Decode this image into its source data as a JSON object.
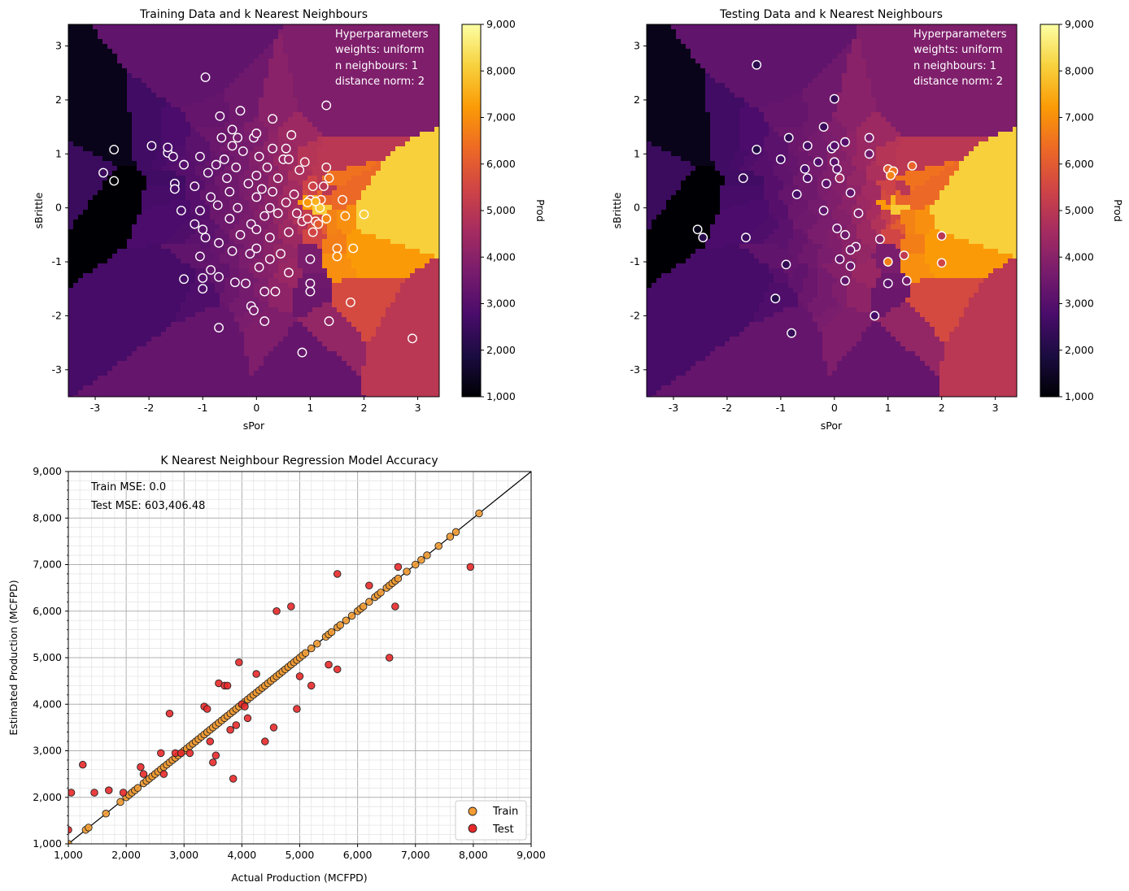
{
  "colors": {
    "train_marker": "#f39c33",
    "test_marker": "#e8292a",
    "inferno": [
      "#000004",
      "#1b0c41",
      "#4a0c6b",
      "#781c6d",
      "#a52c60",
      "#cf4446",
      "#ed6925",
      "#fb9b06",
      "#f7d13d",
      "#fcffa4"
    ]
  },
  "chart_data": [
    {
      "type": "heatmap",
      "title": "Training Data and k Nearest Neighbours",
      "xlabel": "sPor",
      "ylabel": "sBrittle",
      "xlim": [
        -3.5,
        3.4
      ],
      "ylim": [
        -3.5,
        3.4
      ],
      "xticks": [
        "-3",
        "-2",
        "-1",
        "0",
        "1",
        "2",
        "3"
      ],
      "yticks": [
        "-3",
        "-2",
        "-1",
        "0",
        "1",
        "2",
        "3"
      ],
      "hyperparameters": [
        "Hyperparameters",
        "weights: uniform",
        "n neighbours: 1",
        "distance norm: 2"
      ],
      "colorbar": {
        "label": "Prod",
        "range": [
          1000,
          9000
        ],
        "ticks": [
          "1,000",
          "2,000",
          "3,000",
          "4,000",
          "5,000",
          "6,000",
          "7,000",
          "8,000",
          "9,000"
        ]
      },
      "points": [
        [
          -0.95,
          2.42,
          3200
        ],
        [
          -2.65,
          1.08,
          1300
        ],
        [
          -2.85,
          0.65,
          2500
        ],
        [
          -2.65,
          0.5,
          1000
        ],
        [
          -1.95,
          1.15,
          2600
        ],
        [
          -1.65,
          1.02,
          2700
        ],
        [
          -1.65,
          1.12,
          2800
        ],
        [
          -1.55,
          0.95,
          2900
        ],
        [
          -1.52,
          0.45,
          2600
        ],
        [
          -1.52,
          0.35,
          2700
        ],
        [
          -1.35,
          0.8,
          3000
        ],
        [
          -1.4,
          -0.05,
          2800
        ],
        [
          -1.35,
          -1.32,
          2700
        ],
        [
          -1.15,
          0.4,
          3000
        ],
        [
          -1.15,
          -0.3,
          2900
        ],
        [
          -1.05,
          0.95,
          3100
        ],
        [
          -1.05,
          -0.05,
          3000
        ],
        [
          -1.0,
          -0.4,
          3100
        ],
        [
          -1.05,
          -0.9,
          3200
        ],
        [
          -1.0,
          -1.3,
          3000
        ],
        [
          -1.0,
          -1.5,
          2900
        ],
        [
          -0.95,
          -0.55,
          3100
        ],
        [
          -0.9,
          0.65,
          3200
        ],
        [
          -0.85,
          -1.15,
          3300
        ],
        [
          -0.85,
          0.2,
          3300
        ],
        [
          -0.75,
          0.8,
          3300
        ],
        [
          -0.72,
          0.05,
          3400
        ],
        [
          -0.7,
          -0.65,
          3300
        ],
        [
          -0.7,
          -1.28,
          3200
        ],
        [
          -0.7,
          -2.22,
          3300
        ],
        [
          -0.68,
          1.7,
          3300
        ],
        [
          -0.65,
          1.3,
          3400
        ],
        [
          -0.6,
          0.9,
          3400
        ],
        [
          -0.55,
          0.55,
          3500
        ],
        [
          -0.5,
          0.3,
          3500
        ],
        [
          -0.5,
          -0.2,
          3500
        ],
        [
          -0.45,
          -0.8,
          3500
        ],
        [
          -0.45,
          1.15,
          3600
        ],
        [
          -0.45,
          1.45,
          3500
        ],
        [
          -0.4,
          -1.38,
          3400
        ],
        [
          -0.38,
          0.75,
          3600
        ],
        [
          -0.35,
          0.0,
          3600
        ],
        [
          -0.35,
          1.3,
          3600
        ],
        [
          -0.3,
          -0.5,
          3700
        ],
        [
          -0.3,
          1.8,
          3500
        ],
        [
          -0.25,
          1.05,
          3600
        ],
        [
          -0.2,
          -1.4,
          3600
        ],
        [
          -0.15,
          0.45,
          3700
        ],
        [
          -0.12,
          -0.85,
          3700
        ],
        [
          -0.1,
          -1.82,
          3600
        ],
        [
          -0.1,
          -0.3,
          3700
        ],
        [
          -0.05,
          1.3,
          3700
        ],
        [
          -0.05,
          -1.9,
          3700
        ],
        [
          0.0,
          0.6,
          3800
        ],
        [
          0.0,
          0.2,
          3800
        ],
        [
          0.0,
          -0.4,
          3800
        ],
        [
          0.0,
          -0.75,
          3800
        ],
        [
          0.0,
          1.38,
          3800
        ],
        [
          0.05,
          0.95,
          3900
        ],
        [
          0.05,
          -1.1,
          3900
        ],
        [
          0.1,
          0.35,
          3900
        ],
        [
          0.15,
          -0.15,
          3900
        ],
        [
          0.15,
          -1.55,
          3800
        ],
        [
          0.15,
          -2.1,
          3800
        ],
        [
          0.2,
          0.75,
          4000
        ],
        [
          0.25,
          0.0,
          4000
        ],
        [
          0.25,
          -0.55,
          4000
        ],
        [
          0.25,
          -0.95,
          4000
        ],
        [
          0.3,
          1.65,
          4000
        ],
        [
          0.3,
          1.1,
          4100
        ],
        [
          0.3,
          0.3,
          4100
        ],
        [
          0.35,
          -1.55,
          4100
        ],
        [
          0.4,
          -0.1,
          4200
        ],
        [
          0.4,
          0.55,
          4200
        ],
        [
          0.45,
          -0.85,
          4200
        ],
        [
          0.5,
          0.9,
          4300
        ],
        [
          0.55,
          1.1,
          4300
        ],
        [
          0.55,
          0.1,
          4400
        ],
        [
          0.6,
          0.9,
          4400
        ],
        [
          0.6,
          -0.45,
          4400
        ],
        [
          0.6,
          -1.2,
          4300
        ],
        [
          0.65,
          1.35,
          4400
        ],
        [
          0.7,
          0.25,
          4500
        ],
        [
          0.75,
          -0.1,
          4600
        ],
        [
          0.8,
          0.7,
          4700
        ],
        [
          0.85,
          -0.25,
          4800
        ],
        [
          0.85,
          -2.68,
          3300
        ],
        [
          0.9,
          0.85,
          4900
        ],
        [
          0.95,
          -0.2,
          5200
        ],
        [
          1.0,
          0.15,
          5600
        ],
        [
          1.0,
          -0.95,
          3700
        ],
        [
          1.0,
          -1.4,
          3500
        ],
        [
          1.0,
          -1.55,
          3400
        ],
        [
          1.05,
          0.4,
          5400
        ],
        [
          1.05,
          -0.45,
          5500
        ],
        [
          1.1,
          -0.25,
          5600
        ],
        [
          1.15,
          -0.3,
          6000
        ],
        [
          1.2,
          0.15,
          6200
        ],
        [
          1.25,
          0.4,
          5000
        ],
        [
          1.3,
          1.9,
          3800
        ],
        [
          1.3,
          0.75,
          5000
        ],
        [
          1.3,
          -0.2,
          6800
        ],
        [
          1.35,
          -2.1,
          4200
        ],
        [
          1.35,
          0.55,
          6500
        ],
        [
          1.5,
          -0.75,
          6700
        ],
        [
          1.5,
          -0.9,
          7000
        ],
        [
          1.6,
          0.15,
          6300
        ],
        [
          1.65,
          -0.15,
          7000
        ],
        [
          1.75,
          -1.75,
          5600
        ],
        [
          1.8,
          -0.75,
          7200
        ],
        [
          2.0,
          -0.12,
          8100
        ],
        [
          2.9,
          -2.42,
          5000
        ],
        [
          1.18,
          0.0,
          8000
        ],
        [
          1.1,
          0.12,
          7600
        ],
        [
          0.95,
          0.1,
          7200
        ]
      ]
    },
    {
      "type": "heatmap",
      "title": "Testing Data and k Nearest Neighbours",
      "xlabel": "sPor",
      "ylabel": "sBrittle",
      "xlim": [
        -3.5,
        3.4
      ],
      "ylim": [
        -3.5,
        3.4
      ],
      "xticks": [
        "-3",
        "-2",
        "-1",
        "0",
        "1",
        "2",
        "3"
      ],
      "yticks": [
        "-3",
        "-2",
        "-1",
        "0",
        "1",
        "2",
        "3"
      ],
      "hyperparameters": [
        "Hyperparameters",
        "weights: uniform",
        "n neighbours: 1",
        "distance norm: 2"
      ],
      "colorbar": {
        "label": "Prod",
        "range": [
          1000,
          9000
        ],
        "ticks": [
          "1,000",
          "2,000",
          "3,000",
          "4,000",
          "5,000",
          "6,000",
          "7,000",
          "8,000",
          "9,000"
        ]
      },
      "points": [
        [
          -1.45,
          2.65,
          2200
        ],
        [
          0.0,
          2.02,
          2400
        ],
        [
          -1.45,
          1.08,
          2000
        ],
        [
          -0.85,
          1.3,
          2300
        ],
        [
          -0.2,
          1.5,
          2500
        ],
        [
          0.2,
          1.22,
          3000
        ],
        [
          0.65,
          1.3,
          3700
        ],
        [
          -0.5,
          1.15,
          2700
        ],
        [
          -0.05,
          1.1,
          2900
        ],
        [
          0.0,
          1.15,
          3000
        ],
        [
          0.65,
          1.0,
          3500
        ],
        [
          -1.0,
          0.9,
          2600
        ],
        [
          -0.3,
          0.85,
          2900
        ],
        [
          0.0,
          0.85,
          3100
        ],
        [
          -0.55,
          0.72,
          2800
        ],
        [
          0.05,
          0.72,
          3300
        ],
        [
          1.0,
          0.72,
          6000
        ],
        [
          1.1,
          0.68,
          6500
        ],
        [
          1.45,
          0.78,
          6200
        ],
        [
          -1.7,
          0.55,
          2400
        ],
        [
          -0.5,
          0.55,
          2900
        ],
        [
          -0.15,
          0.45,
          3100
        ],
        [
          0.1,
          0.55,
          4500
        ],
        [
          1.05,
          0.6,
          6800
        ],
        [
          -0.7,
          0.25,
          2700
        ],
        [
          0.3,
          0.28,
          3200
        ],
        [
          -0.2,
          -0.05,
          3200
        ],
        [
          0.45,
          -0.1,
          3800
        ],
        [
          -2.55,
          -0.4,
          1300
        ],
        [
          -2.45,
          -0.55,
          2200
        ],
        [
          -1.65,
          -0.55,
          2500
        ],
        [
          0.05,
          -0.38,
          3400
        ],
        [
          0.2,
          -0.5,
          3500
        ],
        [
          0.85,
          -0.58,
          4000
        ],
        [
          0.4,
          -0.72,
          3700
        ],
        [
          0.3,
          -0.78,
          3600
        ],
        [
          2.0,
          -0.52,
          5000
        ],
        [
          0.1,
          -0.95,
          3300
        ],
        [
          1.0,
          -1.0,
          6700
        ],
        [
          1.3,
          -0.88,
          5100
        ],
        [
          2.0,
          -1.02,
          5500
        ],
        [
          -0.9,
          -1.05,
          2300
        ],
        [
          0.3,
          -1.08,
          3400
        ],
        [
          1.0,
          -1.4,
          3100
        ],
        [
          1.35,
          -1.35,
          3600
        ],
        [
          0.2,
          -1.35,
          3200
        ],
        [
          -1.1,
          -1.68,
          2100
        ],
        [
          0.75,
          -2.0,
          2700
        ],
        [
          -0.8,
          -2.32,
          2400
        ]
      ]
    },
    {
      "type": "scatter",
      "title": "K Nearest Neighbour Regression Model Accuracy",
      "xlabel": "Actual Production (MCFPD)",
      "ylabel": "Estimated Production (MCFPD)",
      "xlim": [
        1000,
        9000
      ],
      "ylim": [
        1000,
        9000
      ],
      "xticks": [
        "1,000",
        "2,000",
        "3,000",
        "4,000",
        "5,000",
        "6,000",
        "7,000",
        "8,000",
        "9,000"
      ],
      "yticks": [
        "1,000",
        "2,000",
        "3,000",
        "4,000",
        "5,000",
        "6,000",
        "7,000",
        "8,000",
        "9,000"
      ],
      "annotations": [
        "Train MSE: 0.0",
        "Test MSE:  603,406.48"
      ],
      "legend": {
        "placement": "lower-right",
        "entries": [
          "Train",
          "Test"
        ]
      },
      "series": [
        {
          "name": "Train",
          "x": [
            1000,
            1300,
            1350,
            1650,
            1900,
            2000,
            2050,
            2100,
            2150,
            2200,
            2300,
            2350,
            2400,
            2450,
            2500,
            2550,
            2600,
            2650,
            2700,
            2750,
            2800,
            2850,
            2900,
            2950,
            3000,
            3050,
            3100,
            3150,
            3200,
            3250,
            3300,
            3350,
            3400,
            3450,
            3500,
            3550,
            3600,
            3650,
            3700,
            3750,
            3800,
            3850,
            3900,
            3950,
            4000,
            4050,
            4100,
            4150,
            4200,
            4250,
            4300,
            4350,
            4400,
            4450,
            4500,
            4550,
            4600,
            4650,
            4700,
            4750,
            4800,
            4850,
            4900,
            4950,
            5000,
            5050,
            5100,
            5200,
            5300,
            5450,
            5500,
            5550,
            5650,
            5700,
            5800,
            5900,
            6000,
            6050,
            6100,
            6200,
            6300,
            6350,
            6400,
            6500,
            6550,
            6600,
            6650,
            6700,
            6850,
            7000,
            7100,
            7200,
            7400,
            7600,
            7700,
            8100
          ],
          "y": [
            1000,
            1300,
            1350,
            1650,
            1900,
            2000,
            2050,
            2100,
            2150,
            2200,
            2300,
            2350,
            2400,
            2450,
            2500,
            2550,
            2600,
            2650,
            2700,
            2750,
            2800,
            2850,
            2900,
            2950,
            3000,
            3050,
            3100,
            3150,
            3200,
            3250,
            3300,
            3350,
            3400,
            3450,
            3500,
            3550,
            3600,
            3650,
            3700,
            3750,
            3800,
            3850,
            3900,
            3950,
            4000,
            4050,
            4100,
            4150,
            4200,
            4250,
            4300,
            4350,
            4400,
            4450,
            4500,
            4550,
            4600,
            4650,
            4700,
            4750,
            4800,
            4850,
            4900,
            4950,
            5000,
            5050,
            5100,
            5200,
            5300,
            5450,
            5500,
            5550,
            5650,
            5700,
            5800,
            5900,
            6000,
            6050,
            6100,
            6200,
            6300,
            6350,
            6400,
            6500,
            6550,
            6600,
            6650,
            6700,
            6850,
            7000,
            7100,
            7200,
            7400,
            7600,
            7700,
            8100
          ]
        },
        {
          "name": "Test",
          "x": [
            1000,
            1050,
            1250,
            1450,
            1700,
            1950,
            2250,
            2300,
            2600,
            2650,
            2750,
            2850,
            2950,
            3100,
            3350,
            3400,
            3450,
            3500,
            3550,
            3600,
            3700,
            3750,
            3800,
            3850,
            3900,
            3950,
            4000,
            4050,
            4100,
            4250,
            4400,
            4550,
            4600,
            4850,
            4950,
            5000,
            5200,
            5500,
            5650,
            5650,
            6200,
            6550,
            6650,
            6700,
            7950
          ],
          "y": [
            1300,
            2100,
            2700,
            2100,
            2150,
            2100,
            2650,
            2500,
            2950,
            2500,
            3800,
            2950,
            2950,
            2950,
            3950,
            3900,
            3200,
            2750,
            2900,
            4450,
            4400,
            4400,
            3450,
            2400,
            3550,
            4900,
            4000,
            3950,
            3700,
            4650,
            3200,
            3500,
            6000,
            6100,
            3900,
            4600,
            4400,
            4850,
            4750,
            6800,
            6550,
            5000,
            6100,
            6950,
            6950
          ]
        }
      ]
    }
  ]
}
